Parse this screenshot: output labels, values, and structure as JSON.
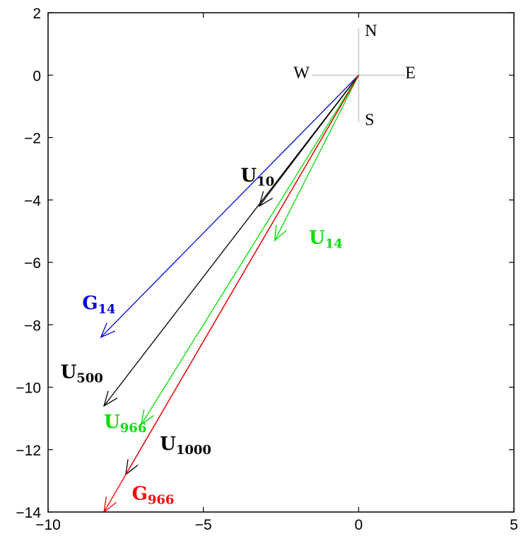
{
  "chart_data": {
    "type": "vector",
    "title": "",
    "xlabel": "",
    "ylabel": "",
    "xlim": [
      -10,
      5
    ],
    "ylim": [
      -14,
      2
    ],
    "x_ticks": [
      -10,
      -5,
      0,
      5
    ],
    "y_ticks": [
      2,
      0,
      -2,
      -4,
      -6,
      -8,
      -10,
      -12,
      -14
    ],
    "x_tick_labels": [
      "−10",
      "−5",
      "0",
      "5"
    ],
    "y_tick_labels": [
      "2",
      "0",
      "−2",
      "−4",
      "−6",
      "−8",
      "−10",
      "−12",
      "−14"
    ],
    "grid": false,
    "origin": [
      0,
      0
    ],
    "compass": {
      "color": "#c8c8c8",
      "labels": {
        "north": "N",
        "south": "S",
        "east": "E",
        "west": "W"
      }
    },
    "series": [
      {
        "main": "U",
        "sub": "10",
        "color": "#000000",
        "u": -3.2,
        "v": -4.2,
        "label_at": [
          -3.8,
          -3.4
        ]
      },
      {
        "main": "U",
        "sub": "14",
        "color": "#00e000",
        "u": -2.7,
        "v": -5.3,
        "label_at": [
          -1.6,
          -5.4
        ]
      },
      {
        "main": "G",
        "sub": "14",
        "color": "#0000e0",
        "u": -8.3,
        "v": -8.4,
        "label_at": [
          -8.9,
          -7.5
        ]
      },
      {
        "main": "U",
        "sub": "500",
        "color": "#000000",
        "u": -8.2,
        "v": -10.6,
        "label_at": [
          -9.6,
          -9.7
        ]
      },
      {
        "main": "U",
        "sub": "966",
        "color": "#00e000",
        "u": -7.0,
        "v": -11.2,
        "label_at": [
          -8.2,
          -11.3
        ]
      },
      {
        "main": "U",
        "sub": "1000",
        "color": "#000000",
        "u": -7.5,
        "v": -12.8,
        "label_at": [
          -6.4,
          -12.0
        ]
      },
      {
        "main": "G",
        "sub": "966",
        "color": "#ff0000",
        "u": -8.2,
        "v": -14.0,
        "label_at": [
          -7.3,
          -13.6
        ]
      }
    ]
  }
}
